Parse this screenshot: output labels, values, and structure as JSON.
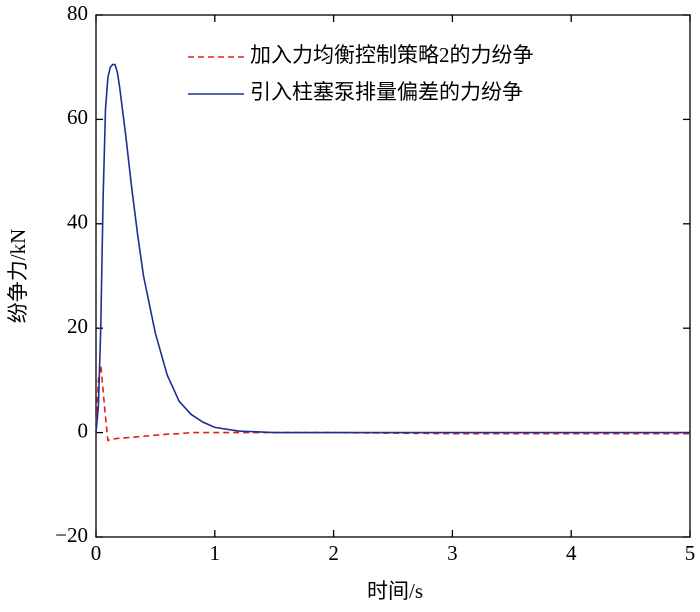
{
  "chart_data": {
    "type": "line",
    "xlabel": "时间/s",
    "ylabel": "纷争力/kN",
    "x": [
      0,
      0.02,
      0.04,
      0.06,
      0.08,
      0.1,
      0.12,
      0.14,
      0.16,
      0.18,
      0.2,
      0.25,
      0.3,
      0.35,
      0.4,
      0.5,
      0.6,
      0.7,
      0.8,
      0.9,
      1.0,
      1.2,
      1.5,
      2,
      3,
      4,
      5
    ],
    "series": [
      {
        "name": "加入力均衡控制策略2的力纷争",
        "color": "#e0201c",
        "dashed": true,
        "values": [
          0,
          10,
          13,
          8,
          3,
          -1.5,
          -1.3,
          -1.2,
          -1.2,
          -1.1,
          -1.1,
          -1,
          -0.9,
          -0.8,
          -0.7,
          -0.5,
          -0.3,
          -0.2,
          0,
          0,
          0,
          0,
          0,
          0,
          -0.2,
          -0.2,
          -0.2
        ]
      },
      {
        "name": "引入柱塞泵排量偏差的力纷争",
        "color": "#1f2f8f",
        "dashed": false,
        "values": [
          0,
          5,
          20,
          45,
          62,
          68,
          70,
          70.5,
          70.5,
          69,
          66,
          57,
          47,
          38,
          30,
          19,
          11,
          6,
          3.5,
          2,
          1,
          0.3,
          0,
          0,
          0,
          0,
          0
        ]
      }
    ],
    "xlim": [
      0,
      5
    ],
    "xticks": [
      0,
      1,
      2,
      3,
      4,
      5
    ],
    "ylim": [
      -20,
      80
    ],
    "yticks": [
      {
        "value": -20,
        "label": "−20"
      },
      0,
      20,
      40,
      60,
      80
    ],
    "legend": "upper right",
    "grid": false
  }
}
